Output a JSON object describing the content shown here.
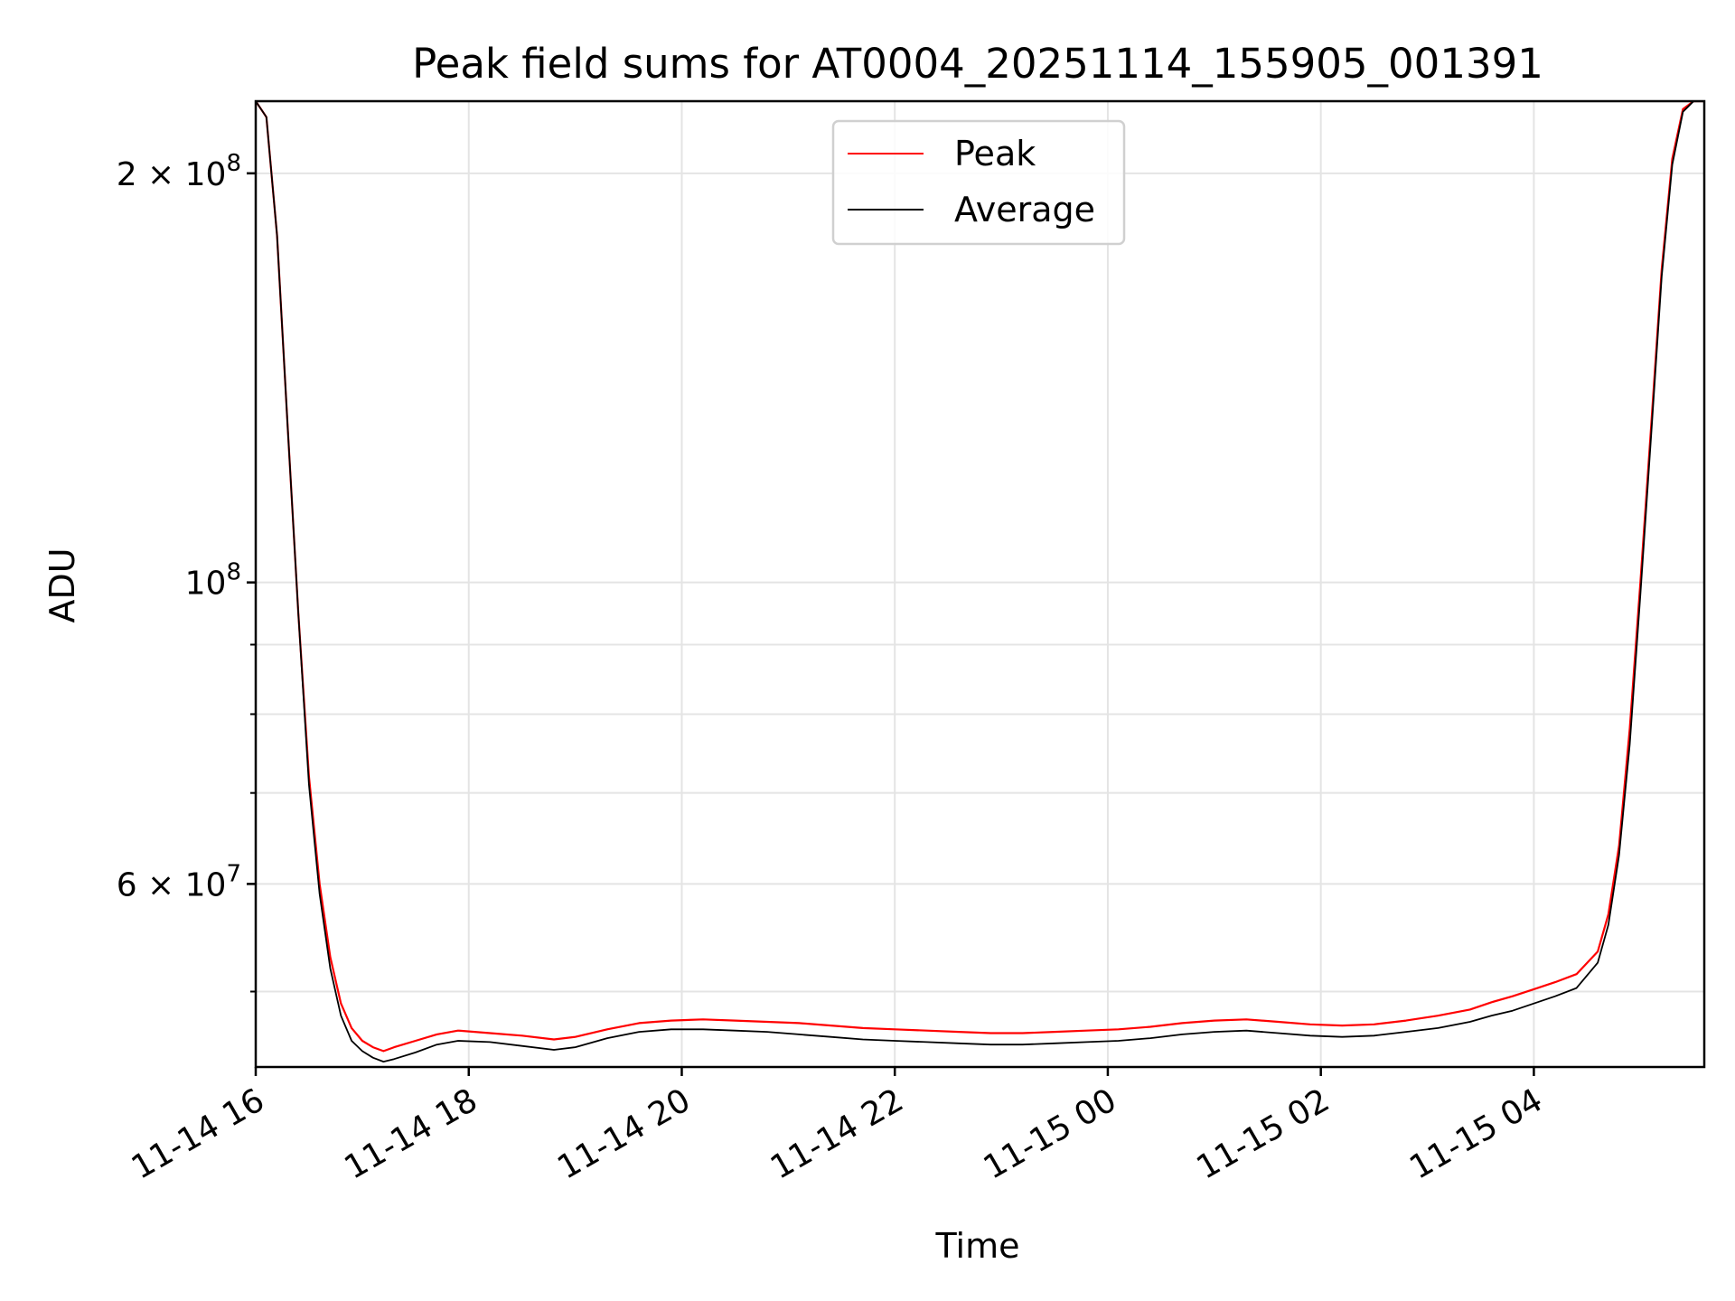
{
  "chart_data": {
    "type": "line",
    "title": "Peak field sums for AT0004_20251114_155905_001391",
    "xlabel": "Time",
    "ylabel": "ADU",
    "yscale": "log",
    "ylim": [
      44000000,
      226000000
    ],
    "xlim_hours": [
      16.0,
      29.6
    ],
    "x_unit": "hours since 2025-11-14 00:00",
    "grid": true,
    "legend_position": "top-center",
    "x_ticks": [
      {
        "value": 16,
        "label": "11-14 16"
      },
      {
        "value": 18,
        "label": "11-14 18"
      },
      {
        "value": 20,
        "label": "11-14 20"
      },
      {
        "value": 22,
        "label": "11-14 22"
      },
      {
        "value": 24,
        "label": "11-15 00"
      },
      {
        "value": 26,
        "label": "11-15 02"
      },
      {
        "value": 28,
        "label": "11-15 04"
      }
    ],
    "y_major_ticks": [
      {
        "value": 200000000,
        "base": "2 × 10",
        "exp": "8"
      },
      {
        "value": 100000000,
        "base": "10",
        "exp": "8"
      },
      {
        "value": 60000000,
        "base": "6 × 10",
        "exp": "7"
      }
    ],
    "y_minor_grid": [
      50000000,
      70000000,
      80000000,
      90000000
    ],
    "series": [
      {
        "name": "Peak",
        "color": "#ff0000",
        "x": [
          16.0,
          16.1,
          16.2,
          16.3,
          16.4,
          16.5,
          16.6,
          16.7,
          16.8,
          16.9,
          17.0,
          17.1,
          17.2,
          17.3,
          17.5,
          17.7,
          17.9,
          18.2,
          18.5,
          18.8,
          19.0,
          19.3,
          19.6,
          19.9,
          20.2,
          20.5,
          20.8,
          21.1,
          21.4,
          21.7,
          22.0,
          22.3,
          22.6,
          22.9,
          23.2,
          23.5,
          23.8,
          24.1,
          24.4,
          24.7,
          25.0,
          25.3,
          25.6,
          25.9,
          26.2,
          26.5,
          26.8,
          27.1,
          27.4,
          27.6,
          27.8,
          28.0,
          28.2,
          28.4,
          28.6,
          28.7,
          28.8,
          28.9,
          29.0,
          29.1,
          29.2,
          29.3,
          29.4,
          29.5,
          29.6
        ],
        "values": [
          226000000,
          220000000,
          180000000,
          130000000,
          95000000,
          72000000,
          60000000,
          53000000,
          49000000,
          47000000,
          46000000,
          45500000,
          45200000,
          45500000,
          46000000,
          46500000,
          46800000,
          46600000,
          46400000,
          46100000,
          46300000,
          46900000,
          47400000,
          47600000,
          47700000,
          47600000,
          47500000,
          47400000,
          47200000,
          47000000,
          46900000,
          46800000,
          46700000,
          46600000,
          46600000,
          46700000,
          46800000,
          46900000,
          47100000,
          47400000,
          47600000,
          47700000,
          47500000,
          47300000,
          47200000,
          47300000,
          47600000,
          48000000,
          48500000,
          49100000,
          49600000,
          50200000,
          50800000,
          51500000,
          53500000,
          57000000,
          64000000,
          78000000,
          100000000,
          130000000,
          170000000,
          205000000,
          223000000,
          226000000,
          226000000
        ]
      },
      {
        "name": "Average",
        "color": "#000000",
        "x": [
          16.0,
          16.1,
          16.2,
          16.3,
          16.4,
          16.5,
          16.6,
          16.7,
          16.8,
          16.9,
          17.0,
          17.1,
          17.2,
          17.3,
          17.5,
          17.7,
          17.9,
          18.2,
          18.5,
          18.8,
          19.0,
          19.3,
          19.6,
          19.9,
          20.2,
          20.5,
          20.8,
          21.1,
          21.4,
          21.7,
          22.0,
          22.3,
          22.6,
          22.9,
          23.2,
          23.5,
          23.8,
          24.1,
          24.4,
          24.7,
          25.0,
          25.3,
          25.6,
          25.9,
          26.2,
          26.5,
          26.8,
          27.1,
          27.4,
          27.6,
          27.8,
          28.0,
          28.2,
          28.4,
          28.6,
          28.7,
          28.8,
          28.9,
          29.0,
          29.1,
          29.2,
          29.3,
          29.4,
          29.5,
          29.6
        ],
        "values": [
          226000000,
          220000000,
          180000000,
          130000000,
          95000000,
          71000000,
          59000000,
          52000000,
          48000000,
          46000000,
          45200000,
          44700000,
          44400000,
          44600000,
          45100000,
          45700000,
          46000000,
          45900000,
          45600000,
          45300000,
          45500000,
          46200000,
          46700000,
          46900000,
          46900000,
          46800000,
          46700000,
          46500000,
          46300000,
          46100000,
          46000000,
          45900000,
          45800000,
          45700000,
          45700000,
          45800000,
          45900000,
          46000000,
          46200000,
          46500000,
          46700000,
          46800000,
          46600000,
          46400000,
          46300000,
          46400000,
          46700000,
          47000000,
          47500000,
          48000000,
          48400000,
          49000000,
          49600000,
          50300000,
          52500000,
          56000000,
          63000000,
          76000000,
          98000000,
          128000000,
          168000000,
          203000000,
          222000000,
          226000000,
          226000000
        ]
      }
    ]
  }
}
